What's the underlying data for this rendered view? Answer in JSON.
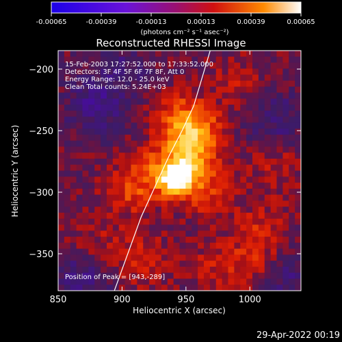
{
  "colorbar": {
    "tick_labels": [
      "-0.00065",
      "-0.00039",
      "-0.00013",
      "0.00013",
      "0.00039",
      "0.00065"
    ],
    "tick_values": [
      -0.00065,
      -0.00039,
      -0.00013,
      0.00013,
      0.00039,
      0.00065
    ],
    "range": [
      -0.00065,
      0.00065
    ],
    "units_label": "(photons cm⁻² s⁻¹ asec⁻²)",
    "gradient_colors": [
      "#1c00e8",
      "#6a12d8",
      "#9a1070",
      "#d01010",
      "#ff8a00",
      "#ffffff"
    ]
  },
  "title": "Reconstructed RHESSI Image",
  "annotations": [
    "15-Feb-2003 17:27:52.000 to 17:33:52.000",
    "Detectors: 3F 4F 5F 6F 7F 8F, Att 0",
    "Energy Range: 12.0 - 25.0 keV",
    "Clean     Total counts: 5.24E+03"
  ],
  "peak_label": "Position of Peak = [943,-289]",
  "footer_date": "29-Apr-2022 00:19",
  "chart_data": {
    "type": "heatmap",
    "title": "Reconstructed RHESSI Image",
    "xlabel": "Heliocentric X (arcsec)",
    "ylabel": "Heliocentric Y (arcsec)",
    "xlim": [
      850,
      1040
    ],
    "ylim": [
      -380,
      -185
    ],
    "xticks": [
      850,
      900,
      950,
      1000
    ],
    "yticks": [
      -200,
      -250,
      -300,
      -350
    ],
    "grid": false,
    "peak": {
      "x": 943,
      "y": -289
    },
    "value_range": [
      -0.00065,
      0.00065
    ],
    "limb_line": {
      "x": [
        894,
        915,
        937,
        947,
        956,
        969
      ],
      "y": [
        -380,
        -320,
        -270,
        -250,
        -230,
        -185
      ]
    },
    "sources": [
      {
        "x": 943,
        "y": -289,
        "value": 0.00065
      },
      {
        "x": 953,
        "y": -270,
        "value": 0.0003
      },
      {
        "x": 957,
        "y": -250,
        "value": 0.00028
      },
      {
        "x": 945,
        "y": -240,
        "value": 0.0002
      },
      {
        "x": 925,
        "y": -285,
        "value": 0.00022
      },
      {
        "x": 968,
        "y": -300,
        "value": 0.0002
      },
      {
        "x": 903,
        "y": -300,
        "value": 0.00018
      },
      {
        "x": 915,
        "y": -355,
        "value": 0.00018
      },
      {
        "x": 990,
        "y": -210,
        "value": 0.00012
      },
      {
        "x": 1010,
        "y": -330,
        "value": 0.00016
      },
      {
        "x": 1020,
        "y": -280,
        "value": 0.00012
      },
      {
        "x": 1000,
        "y": -360,
        "value": 0.00015
      },
      {
        "x": 880,
        "y": -340,
        "value": 0.0001
      },
      {
        "x": 970,
        "y": -360,
        "value": 0.00012
      },
      {
        "x": 880,
        "y": -230,
        "value": -0.0002
      },
      {
        "x": 1020,
        "y": -240,
        "value": -0.00015
      },
      {
        "x": 870,
        "y": -370,
        "value": -0.00018
      },
      {
        "x": 1030,
        "y": -370,
        "value": -0.00015
      },
      {
        "x": 900,
        "y": -200,
        "value": -0.00012
      }
    ]
  }
}
